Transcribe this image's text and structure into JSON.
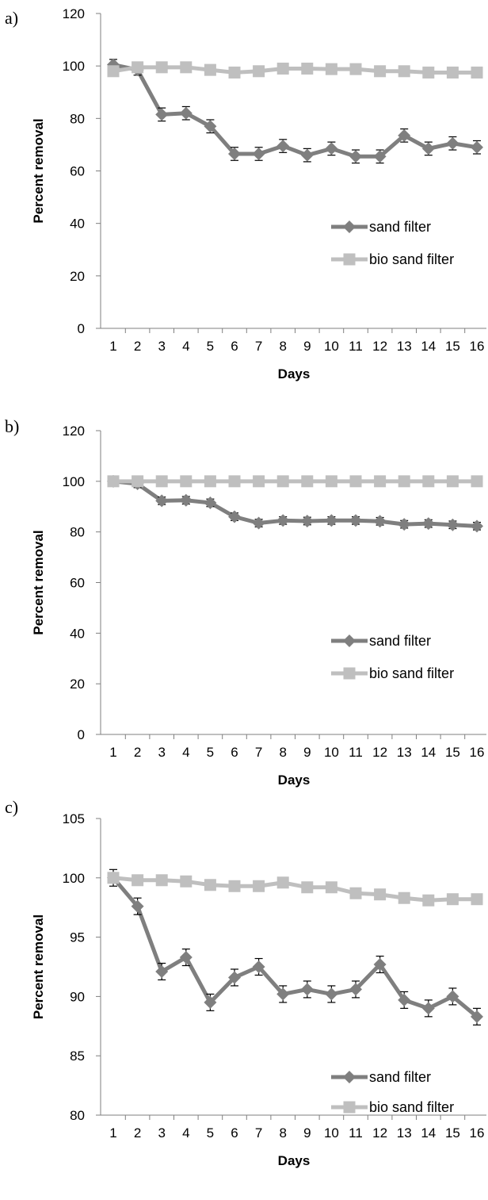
{
  "colors": {
    "sand": "#7f7f7f",
    "bio": "#bfbfbf",
    "axis": "#7f7f7f"
  },
  "legend": {
    "sand": "sand filter",
    "bio": "bio sand filter"
  },
  "chart_data": [
    {
      "type": "line",
      "panel_label": "a)",
      "xlabel": "Days",
      "ylabel": "Percent removal",
      "categories": [
        "1",
        "2",
        "3",
        "4",
        "5",
        "6",
        "7",
        "8",
        "9",
        "10",
        "11",
        "12",
        "13",
        "14",
        "15",
        "16"
      ],
      "ylim": [
        0,
        120
      ],
      "yticks": [
        "0",
        "20",
        "40",
        "60",
        "80",
        "100",
        "120"
      ],
      "legend_position": "right",
      "series": [
        {
          "name": "sand filter",
          "marker": "diamond",
          "values": [
            100.5,
            98.5,
            81.5,
            82,
            77,
            66.5,
            66.5,
            69.5,
            66,
            68.5,
            65.5,
            65.5,
            73.5,
            68.5,
            70.5,
            69
          ],
          "error": [
            2,
            2,
            2.5,
            2.5,
            2.5,
            2.5,
            2.5,
            2.5,
            2.5,
            2.5,
            2.5,
            2.5,
            2.5,
            2.5,
            2.5,
            2.5
          ]
        },
        {
          "name": "bio sand filter",
          "marker": "square",
          "values": [
            98,
            99.5,
            99.5,
            99.5,
            98.5,
            97.5,
            98,
            99,
            99,
            98.8,
            98.8,
            98,
            98,
            97.5,
            97.5,
            97.5
          ]
        }
      ]
    },
    {
      "type": "line",
      "panel_label": "b)",
      "xlabel": "Days",
      "ylabel": "Percent removal",
      "categories": [
        "1",
        "2",
        "3",
        "4",
        "5",
        "6",
        "7",
        "8",
        "9",
        "10",
        "11",
        "12",
        "13",
        "14",
        "15",
        "16"
      ],
      "ylim": [
        0,
        120
      ],
      "yticks": [
        "0",
        "20",
        "40",
        "60",
        "80",
        "100",
        "120"
      ],
      "legend_position": "right",
      "series": [
        {
          "name": "sand filter",
          "marker": "diamond",
          "values": [
            100,
            99,
            92.3,
            92.5,
            91.5,
            86,
            83.5,
            84.5,
            84.3,
            84.5,
            84.5,
            84.2,
            83,
            83.3,
            82.8,
            82.3
          ],
          "error": [
            1.5,
            1.5,
            1.5,
            1.5,
            1.5,
            1.5,
            1.5,
            1.5,
            1.5,
            1.5,
            1.5,
            1.5,
            1.5,
            1.5,
            1.5,
            1.5
          ]
        },
        {
          "name": "bio sand filter",
          "marker": "square",
          "values": [
            100,
            100,
            100,
            100,
            100,
            100,
            100,
            100,
            100,
            100,
            100,
            100,
            100,
            100,
            100,
            100
          ]
        }
      ]
    },
    {
      "type": "line",
      "panel_label": "c)",
      "xlabel": "Days",
      "ylabel": "Percent removal",
      "categories": [
        "1",
        "2",
        "3",
        "4",
        "5",
        "6",
        "7",
        "8",
        "9",
        "10",
        "11",
        "12",
        "13",
        "14",
        "15",
        "16"
      ],
      "ylim": [
        80,
        105
      ],
      "yticks": [
        "80",
        "85",
        "90",
        "95",
        "100",
        "105"
      ],
      "legend_position": "right",
      "series": [
        {
          "name": "sand filter",
          "marker": "diamond",
          "values": [
            100,
            97.6,
            92.1,
            93.3,
            89.5,
            91.6,
            92.5,
            90.2,
            90.6,
            90.2,
            90.6,
            92.7,
            89.7,
            89,
            90,
            88.3
          ],
          "error": [
            0.7,
            0.7,
            0.7,
            0.7,
            0.7,
            0.7,
            0.7,
            0.7,
            0.7,
            0.7,
            0.7,
            0.7,
            0.7,
            0.7,
            0.7,
            0.7
          ]
        },
        {
          "name": "bio sand filter",
          "marker": "square",
          "values": [
            100,
            99.8,
            99.8,
            99.7,
            99.4,
            99.3,
            99.3,
            99.6,
            99.2,
            99.2,
            98.7,
            98.6,
            98.3,
            98.1,
            98.2,
            98.2
          ]
        }
      ]
    }
  ]
}
